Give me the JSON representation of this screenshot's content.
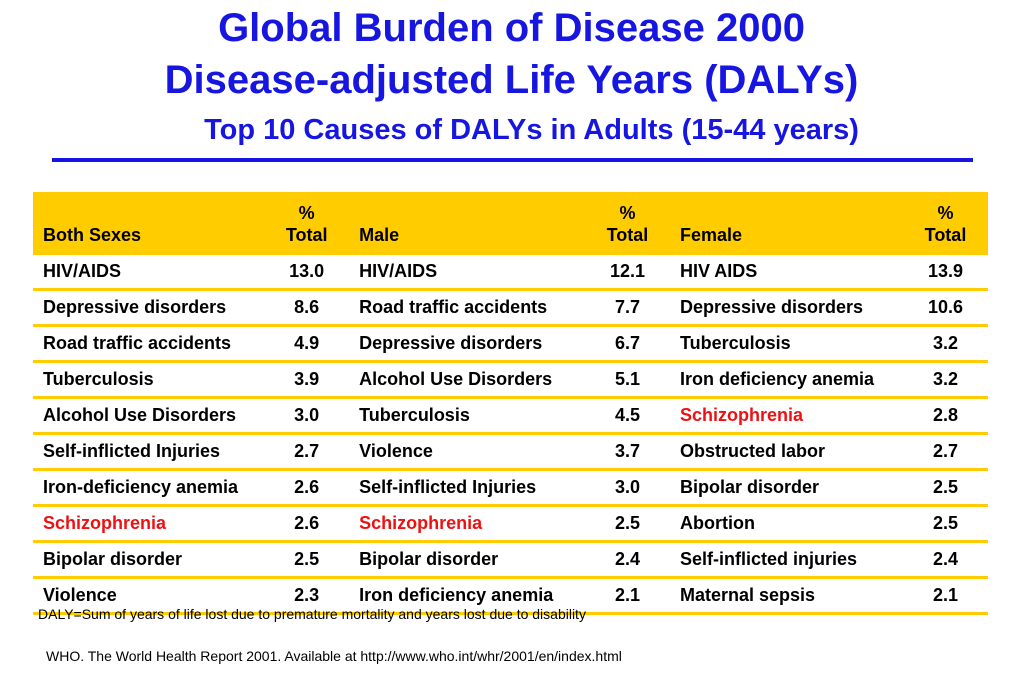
{
  "title": {
    "line1": "Global Burden of Disease 2000",
    "line2": "Disease-adjusted Life Years (DALYs)",
    "line3": "Top 10 Causes of DALYs in Adults (15-44 years)"
  },
  "colors": {
    "title": "#1616e0",
    "header_bg": "#ffcc00",
    "highlight": "#ee1111"
  },
  "table": {
    "headers": {
      "both": "Both Sexes",
      "male": "Male",
      "female": "Female",
      "pct_line1": "%",
      "pct_line2": "Total"
    },
    "rows": [
      {
        "both": "HIV/AIDS",
        "both_pct": "13.0",
        "male": "HIV/AIDS",
        "male_pct": "12.1",
        "female": "HIV AIDS",
        "female_pct": "13.9"
      },
      {
        "both": "Depressive disorders",
        "both_pct": "8.6",
        "male": "Road traffic accidents",
        "male_pct": "7.7",
        "female": "Depressive disorders",
        "female_pct": "10.6"
      },
      {
        "both": "Road traffic accidents",
        "both_pct": "4.9",
        "male": "Depressive disorders",
        "male_pct": "6.7",
        "female": "Tuberculosis",
        "female_pct": "3.2"
      },
      {
        "both": "Tuberculosis",
        "both_pct": "3.9",
        "male": "Alcohol Use Disorders",
        "male_pct": "5.1",
        "female": "Iron deficiency anemia",
        "female_pct": "3.2"
      },
      {
        "both": "Alcohol Use Disorders",
        "both_pct": "3.0",
        "male": "Tuberculosis",
        "male_pct": "4.5",
        "female": "Schizophrenia",
        "female_pct": "2.8"
      },
      {
        "both": "Self-inflicted Injuries",
        "both_pct": "2.7",
        "male": "Violence",
        "male_pct": "3.7",
        "female": "Obstructed labor",
        "female_pct": "2.7"
      },
      {
        "both": "Iron-deficiency anemia",
        "both_pct": "2.6",
        "male": "Self-inflicted Injuries",
        "male_pct": "3.0",
        "female": "Bipolar disorder",
        "female_pct": "2.5"
      },
      {
        "both": "Schizophrenia",
        "both_pct": "2.6",
        "male": "Schizophrenia",
        "male_pct": "2.5",
        "female": "Abortion",
        "female_pct": "2.5"
      },
      {
        "both": "Bipolar disorder",
        "both_pct": "2.5",
        "male": "Bipolar disorder",
        "male_pct": "2.4",
        "female": "Self-inflicted injuries",
        "female_pct": "2.4"
      },
      {
        "both": "Violence",
        "both_pct": "2.3",
        "male": "Iron deficiency anemia",
        "male_pct": "2.1",
        "female": "Maternal sepsis",
        "female_pct": "2.1"
      }
    ],
    "highlight_term": "Schizophrenia"
  },
  "footnote": "DALY=Sum of years of life lost due to premature mortality and years lost due to disability",
  "source": "WHO. The World Health Report 2001. Available at http://www.who.int/whr/2001/en/index.html"
}
